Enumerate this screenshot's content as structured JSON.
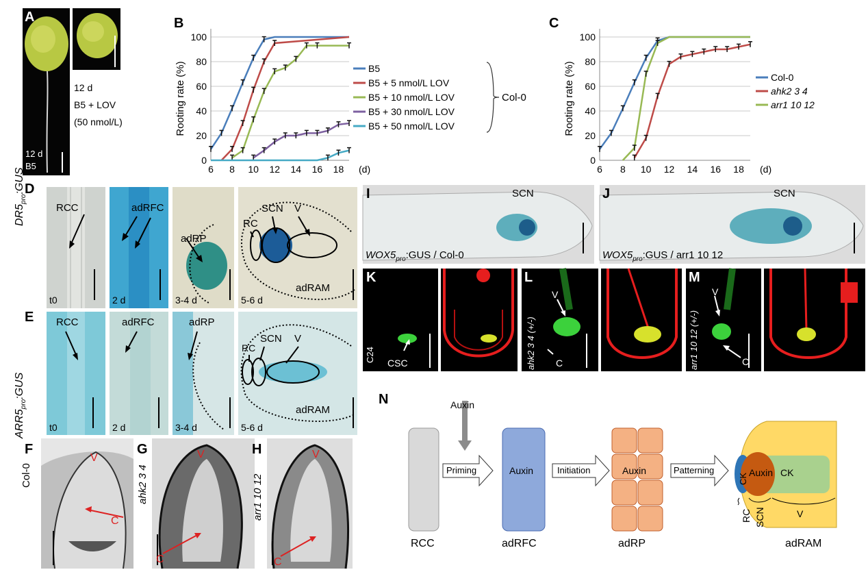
{
  "panels": {
    "A": {
      "label": "A",
      "lbl_12d_b5": "12 d",
      "lbl_b5": "B5",
      "lbl_12d_lov": "12 d",
      "lbl_b5_lov": "B5 + LOV",
      "lbl_conc": "(50 nmol/L)"
    },
    "D": {
      "label": "D",
      "row_label": "DR5pro:GUS",
      "rcc": "RCC",
      "adrfc": "adRFC",
      "adrp": "adRP",
      "scn": "SCN",
      "rc": "RC",
      "v": "V",
      "adram": "adRAM",
      "t0": "t0",
      "d2": "2 d",
      "d34": "3-4 d",
      "d56": "5-6 d"
    },
    "E": {
      "label": "E",
      "row_label": "ARR5pro:GUS",
      "rcc": "RCC",
      "adrfc": "adRFC",
      "adrp": "adRP",
      "scn": "SCN",
      "rc": "RC",
      "v": "V",
      "adram": "adRAM",
      "t0": "t0",
      "d2": "2 d",
      "d34": "3-4 d",
      "d56": "5-6 d"
    },
    "F": {
      "label": "F",
      "genotype": "Col-0",
      "v": "V",
      "c": "C"
    },
    "G": {
      "label": "G",
      "genotype": "ahk2 3 4",
      "v": "V",
      "c": "C"
    },
    "H": {
      "label": "H",
      "genotype": "arr1 10 12",
      "v": "V",
      "c": "C"
    },
    "I": {
      "label": "I",
      "scn": "SCN",
      "caption_a": "WOX5",
      "caption_sub": "pro",
      "caption_b": ":GUS / Col-0"
    },
    "J": {
      "label": "J",
      "scn": "SCN",
      "caption_a": "WOX5",
      "caption_sub": "pro",
      "caption_b": ":GUS / arr1 10 12"
    },
    "K": {
      "label": "K",
      "c24": "C24",
      "csc": "CSC"
    },
    "L": {
      "label": "L",
      "genotype": "ahk2 3 4 (+/-)",
      "v": "V",
      "c": "C"
    },
    "M": {
      "label": "M",
      "genotype": "arr1 10 12 (+/-)",
      "v": "V",
      "c": "C"
    },
    "N": {
      "label": "N",
      "auxin_top": "Auxin",
      "rcc": "RCC",
      "adrfc": "adRFC",
      "adrp": "adRP",
      "adram": "adRAM",
      "priming": "Priming",
      "initiation": "Initiation",
      "patterning": "Patterning",
      "auxin_box": "Auxin",
      "auxin_box2": "Auxin",
      "auxin_ram": "Auxin",
      "ck_left": "CK",
      "ck_right": "CK",
      "rc": "RC",
      "scn": "SCN",
      "v": "V"
    }
  },
  "chart_data": [
    {
      "id": "B",
      "type": "line",
      "label": "B",
      "ylabel": "Rooting rate (%)",
      "xunit": "(d)",
      "xlim": [
        6,
        19
      ],
      "ylim": [
        0,
        100
      ],
      "xticks": [
        6,
        8,
        10,
        12,
        14,
        16,
        18
      ],
      "yticks": [
        0,
        20,
        40,
        60,
        80,
        100
      ],
      "brace_label": "Col-0",
      "series": [
        {
          "name": "B5",
          "color": "#4a7ebb",
          "x": [
            6,
            7,
            8,
            9,
            10,
            11,
            12,
            19
          ],
          "y": [
            9,
            22,
            42,
            63,
            83,
            98,
            100,
            100
          ]
        },
        {
          "name": "B5 + 5 nmol/L LOV",
          "color": "#be4b48",
          "x": [
            7,
            8,
            9,
            10,
            11,
            12,
            19
          ],
          "y": [
            0,
            9,
            30,
            57,
            80,
            95,
            100
          ]
        },
        {
          "name": "B5 + 10 nmol/L LOV",
          "color": "#98b954",
          "x": [
            8,
            9,
            10,
            11,
            12,
            13,
            14,
            15,
            16,
            19
          ],
          "y": [
            2,
            8,
            33,
            56,
            72,
            75,
            82,
            93,
            93,
            93
          ]
        },
        {
          "name": "B5 + 30 nmol/L LOV",
          "color": "#7d60a0",
          "x": [
            10,
            11,
            12,
            13,
            14,
            15,
            16,
            17,
            18,
            19
          ],
          "y": [
            2,
            8,
            15,
            20,
            20,
            22,
            22,
            24,
            29,
            30
          ]
        },
        {
          "name": "B5 + 50 nmol/L LOV",
          "color": "#46aac5",
          "x": [
            6,
            16,
            17,
            18,
            19
          ],
          "y": [
            0,
            0,
            2,
            6,
            8
          ]
        }
      ]
    },
    {
      "id": "C",
      "type": "line",
      "label": "C",
      "ylabel": "Rooting rate (%)",
      "xunit": "(d)",
      "xlim": [
        6,
        19
      ],
      "ylim": [
        0,
        100
      ],
      "xticks": [
        6,
        8,
        10,
        12,
        14,
        16,
        18
      ],
      "yticks": [
        0,
        20,
        40,
        60,
        80,
        100
      ],
      "series": [
        {
          "name": "Col-0",
          "color": "#4a7ebb",
          "x": [
            6,
            7,
            8,
            9,
            10,
            11,
            12,
            19
          ],
          "y": [
            9,
            22,
            42,
            63,
            83,
            97,
            100,
            100
          ]
        },
        {
          "name": "ahk2 3 4",
          "color": "#be4b48",
          "x": [
            9,
            10,
            11,
            12,
            13,
            14,
            15,
            16,
            17,
            18,
            19
          ],
          "y": [
            2,
            18,
            52,
            78,
            84,
            86,
            88,
            90,
            90,
            92,
            94
          ]
        },
        {
          "name": "arr1 10 12",
          "color": "#98b954",
          "x": [
            8,
            9,
            10,
            11,
            12,
            19
          ],
          "y": [
            0,
            10,
            70,
            95,
            100,
            100
          ]
        }
      ]
    }
  ]
}
